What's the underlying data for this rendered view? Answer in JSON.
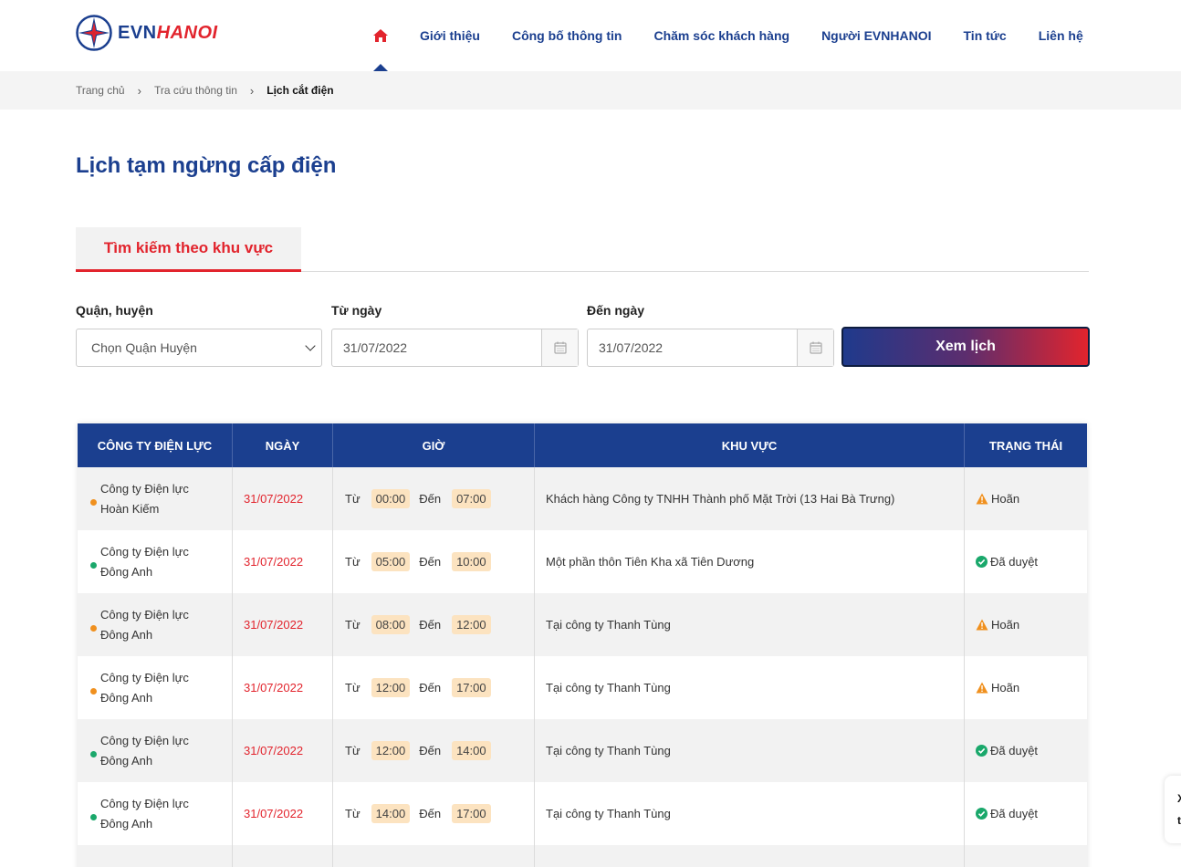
{
  "header": {
    "logo": {
      "evn": "EVN",
      "hanoi": "HANOI"
    },
    "nav": [
      "Giới thiệu",
      "Công bố thông tin",
      "Chăm sóc khách hàng",
      "Người EVNHANOI",
      "Tin tức",
      "Liên hệ"
    ]
  },
  "breadcrumb": [
    "Trang chủ",
    "Tra cứu thông tin",
    "Lịch cắt điện"
  ],
  "page_title": "Lịch tạm ngừng cấp điện",
  "tab": "Tìm kiếm theo khu vực",
  "form": {
    "district_label": "Quận, huyện",
    "district_placeholder": "Chọn Quận Huyện",
    "from_label": "Từ ngày",
    "from_value": "31/07/2022",
    "to_label": "Đến ngày",
    "to_value": "31/07/2022",
    "submit": "Xem lịch"
  },
  "table": {
    "headers": [
      "CÔNG TY ĐIỆN LỰC",
      "NGÀY",
      "GIỜ",
      "KHU VỰC",
      "TRẠNG THÁI"
    ],
    "from_word": "Từ",
    "to_word": "Đến",
    "rows": [
      {
        "company1": "Công ty Điện lực",
        "company2": "Hoàn Kiếm",
        "date": "31/07/2022",
        "start": "00:00",
        "end": "07:00",
        "area": "Khách hàng Công ty TNHH Thành phố Mặt Trời (13 Hai Bà Trưng)",
        "status": "Hoãn"
      },
      {
        "company1": "Công ty Điện lực",
        "company2": "Đông Anh",
        "date": "31/07/2022",
        "start": "05:00",
        "end": "10:00",
        "area": "Một phần thôn Tiên Kha xã Tiên Dương",
        "status": "Đã duyệt"
      },
      {
        "company1": "Công ty Điện lực",
        "company2": "Đông Anh",
        "date": "31/07/2022",
        "start": "08:00",
        "end": "12:00",
        "area": "Tại công ty Thanh Tùng",
        "status": "Hoãn"
      },
      {
        "company1": "Công ty Điện lực",
        "company2": "Đông Anh",
        "date": "31/07/2022",
        "start": "12:00",
        "end": "17:00",
        "area": "Tại công ty Thanh Tùng",
        "status": "Hoãn"
      },
      {
        "company1": "Công ty Điện lực",
        "company2": "Đông Anh",
        "date": "31/07/2022",
        "start": "12:00",
        "end": "14:00",
        "area": "Tại công ty Thanh Tùng",
        "status": "Đã duyệt"
      },
      {
        "company1": "Công ty Điện lực",
        "company2": "Đông Anh",
        "date": "31/07/2022",
        "start": "14:00",
        "end": "17:00",
        "area": "Tại công ty Thanh Tùng",
        "status": "Đã duyệt"
      }
    ]
  },
  "side_widget": {
    "line1": "X",
    "line2": "t"
  },
  "colors": {
    "brand_blue": "#1b3f8f",
    "brand_red": "#e2242d",
    "postponed": "#f0901e",
    "approved": "#1aa86b"
  }
}
